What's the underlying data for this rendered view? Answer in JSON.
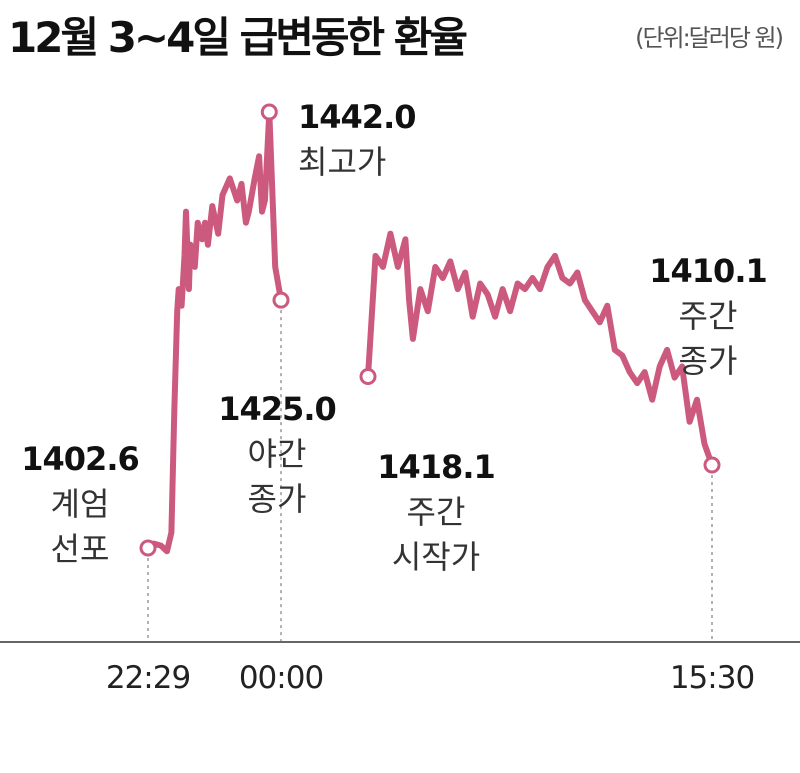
{
  "title": "12월 3~4일 급변동한 환율",
  "unit": "(단위:달러당 원)",
  "colors": {
    "line": "#cc5a7e",
    "axis": "#666666",
    "guide": "#999999"
  },
  "chart_data": {
    "type": "line",
    "title": "12월 3~4일 급변동한 환율",
    "ylabel": "(단위:달러당 원)",
    "x_ticks": [
      "22:29",
      "00:00",
      "15:30"
    ],
    "series": [
      {
        "segment": "야간",
        "points": [
          [
            "22:29",
            1402.6
          ],
          [
            "22:33",
            1403.0
          ],
          [
            "22:38",
            1402.8
          ],
          [
            "22:42",
            1402.3
          ],
          [
            "22:45",
            1404.0
          ],
          [
            "22:47",
            1415.0
          ],
          [
            "22:49",
            1424.0
          ],
          [
            "22:50",
            1426.0
          ],
          [
            "22:52",
            1424.5
          ],
          [
            "22:54",
            1429.0
          ],
          [
            "22:55",
            1433.0
          ],
          [
            "22:57",
            1426.0
          ],
          [
            "22:58",
            1430.0
          ],
          [
            "23:01",
            1428.0
          ],
          [
            "23:03",
            1432.0
          ],
          [
            "23:06",
            1430.5
          ],
          [
            "23:08",
            1432.0
          ],
          [
            "23:10",
            1430.0
          ],
          [
            "23:13",
            1433.5
          ],
          [
            "23:17",
            1431.0
          ],
          [
            "23:20",
            1434.5
          ],
          [
            "23:25",
            1436.0
          ],
          [
            "23:30",
            1434.0
          ],
          [
            "23:33",
            1435.5
          ],
          [
            "23:36",
            1432.0
          ],
          [
            "23:38",
            1433.0
          ],
          [
            "23:42",
            1436.0
          ],
          [
            "23:45",
            1438.0
          ],
          [
            "23:47",
            1433.0
          ],
          [
            "23:49",
            1434.0
          ],
          [
            "23:52",
            1442.0
          ],
          [
            "23:56",
            1428.0
          ],
          [
            "00:00",
            1425.0
          ]
        ],
        "annotations": [
          {
            "time": "22:29",
            "value": "1402.6",
            "label": [
              "계엄",
              "선포"
            ]
          },
          {
            "time": "23:52",
            "value": "1442.0",
            "label": [
              "최고가"
            ]
          },
          {
            "time": "00:00",
            "value": "1425.0",
            "label": [
              "야간",
              "종가"
            ]
          }
        ]
      },
      {
        "segment": "주간",
        "points": [
          [
            0,
            1418.1
          ],
          [
            2,
            1429.0
          ],
          [
            4,
            1428.0
          ],
          [
            6,
            1431.0
          ],
          [
            8,
            1428.0
          ],
          [
            10,
            1430.5
          ],
          [
            11,
            1425.0
          ],
          [
            12,
            1421.5
          ],
          [
            14,
            1426.0
          ],
          [
            16,
            1424.0
          ],
          [
            18,
            1428.0
          ],
          [
            20,
            1427.0
          ],
          [
            22,
            1428.5
          ],
          [
            24,
            1426.0
          ],
          [
            26,
            1427.5
          ],
          [
            28,
            1423.5
          ],
          [
            30,
            1426.5
          ],
          [
            32,
            1425.5
          ],
          [
            34,
            1423.5
          ],
          [
            36,
            1426.0
          ],
          [
            38,
            1424.0
          ],
          [
            40,
            1426.5
          ],
          [
            42,
            1426.0
          ],
          [
            44,
            1427.0
          ],
          [
            46,
            1426.0
          ],
          [
            48,
            1428.0
          ],
          [
            50,
            1429.0
          ],
          [
            52,
            1427.0
          ],
          [
            54,
            1426.5
          ],
          [
            56,
            1427.5
          ],
          [
            58,
            1425.0
          ],
          [
            60,
            1424.0
          ],
          [
            62,
            1423.0
          ],
          [
            64,
            1424.5
          ],
          [
            66,
            1420.5
          ],
          [
            68,
            1420.0
          ],
          [
            70,
            1418.5
          ],
          [
            72,
            1417.5
          ],
          [
            74,
            1418.5
          ],
          [
            76,
            1416.0
          ],
          [
            78,
            1419.0
          ],
          [
            80,
            1420.5
          ],
          [
            82,
            1418.0
          ],
          [
            84,
            1419.0
          ],
          [
            86,
            1414.0
          ],
          [
            88,
            1416.0
          ],
          [
            90,
            1412.0
          ],
          [
            92,
            1410.1
          ]
        ],
        "annotations": [
          {
            "index": 0,
            "value": "1418.1",
            "label": [
              "주간",
              "시작가"
            ]
          },
          {
            "index": 92,
            "value": "1410.1",
            "label": [
              "주간",
              "종가"
            ]
          }
        ]
      }
    ],
    "grid": false,
    "legend": "none"
  }
}
